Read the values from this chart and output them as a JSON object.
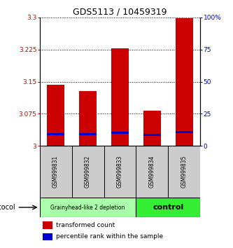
{
  "title": "GDS5113 / 10459319",
  "samples": [
    "GSM999831",
    "GSM999832",
    "GSM999833",
    "GSM999834",
    "GSM999835"
  ],
  "groups": [
    "depletion",
    "depletion",
    "depletion",
    "control",
    "control"
  ],
  "transformed_counts": [
    3.143,
    3.128,
    3.228,
    3.083,
    3.298
  ],
  "percentile_ranks_value": [
    3.028,
    3.027,
    3.031,
    3.026,
    3.033
  ],
  "bar_base": 3.0,
  "ylim_left": [
    3.0,
    3.3
  ],
  "ylim_right": [
    0,
    100
  ],
  "yticks_left": [
    3.0,
    3.075,
    3.15,
    3.225,
    3.3
  ],
  "yticks_right": [
    0,
    25,
    50,
    75,
    100
  ],
  "ytick_labels_left": [
    "3",
    "3.075",
    "3.15",
    "3.225",
    "3.3"
  ],
  "ytick_labels_right": [
    "0",
    "25",
    "50",
    "75",
    "100%"
  ],
  "red_color": "#cc0000",
  "blue_color": "#0000cc",
  "group_color_depletion": "#aaffaa",
  "group_color_control": "#33ee33",
  "bar_width": 0.55,
  "legend_red": "transformed count",
  "legend_blue": "percentile rank within the sample",
  "protocol_label": "protocol",
  "left_tick_color": "#cc0000",
  "right_tick_color": "#0000cc",
  "depletion_label": "Grainyhead-like 2 depletion",
  "control_label": "control"
}
